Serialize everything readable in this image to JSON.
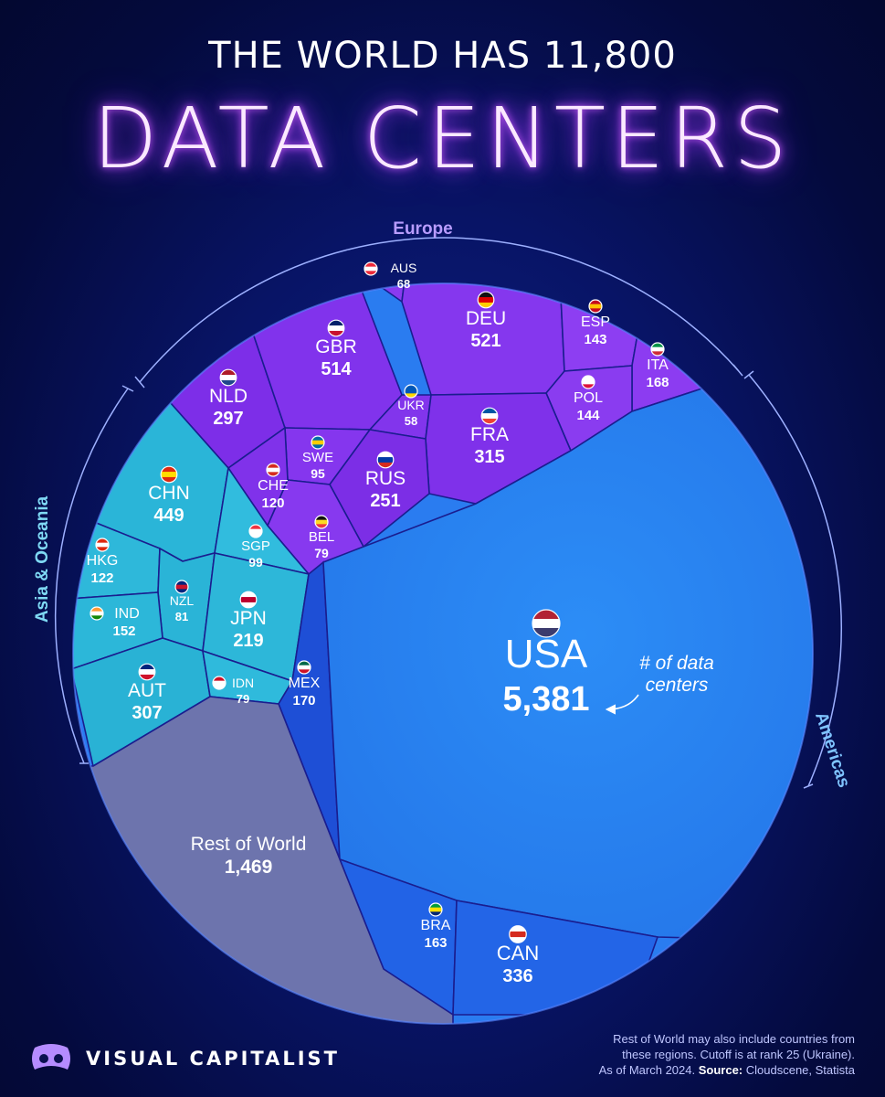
{
  "header": {
    "top_line": "THE WORLD HAS 11,800",
    "main_title": "DATA CENTERS"
  },
  "chart_data": {
    "type": "voronoi-treemap",
    "title": "THE WORLD HAS 11,800 DATA CENTERS",
    "unit_annotation": "# of data centers",
    "groups": [
      {
        "name": "Europe",
        "color": "#8a3cf0"
      },
      {
        "name": "Asia & Oceania",
        "color": "#27b3d6"
      },
      {
        "name": "Americas",
        "color": "#2f86f2"
      }
    ],
    "items": [
      {
        "code": "USA",
        "value": "5,381",
        "group": "Americas"
      },
      {
        "code": "Rest of World",
        "value": "1,469",
        "group": "Other"
      },
      {
        "code": "DEU",
        "value": "521",
        "group": "Europe"
      },
      {
        "code": "GBR",
        "value": "514",
        "group": "Europe"
      },
      {
        "code": "CHN",
        "value": "449",
        "group": "Asia & Oceania"
      },
      {
        "code": "CAN",
        "value": "336",
        "group": "Americas"
      },
      {
        "code": "FRA",
        "value": "315",
        "group": "Europe"
      },
      {
        "code": "AUT",
        "value": "307",
        "group": "Asia & Oceania"
      },
      {
        "code": "NLD",
        "value": "297",
        "group": "Europe"
      },
      {
        "code": "RUS",
        "value": "251",
        "group": "Europe"
      },
      {
        "code": "JPN",
        "value": "219",
        "group": "Asia & Oceania"
      },
      {
        "code": "MEX",
        "value": "170",
        "group": "Americas"
      },
      {
        "code": "ITA",
        "value": "168",
        "group": "Europe"
      },
      {
        "code": "BRA",
        "value": "163",
        "group": "Americas"
      },
      {
        "code": "IND",
        "value": "152",
        "group": "Asia & Oceania"
      },
      {
        "code": "POL",
        "value": "144",
        "group": "Europe"
      },
      {
        "code": "ESP",
        "value": "143",
        "group": "Europe"
      },
      {
        "code": "HKG",
        "value": "122",
        "group": "Asia & Oceania"
      },
      {
        "code": "CHE",
        "value": "120",
        "group": "Europe"
      },
      {
        "code": "SGP",
        "value": "99",
        "group": "Asia & Oceania"
      },
      {
        "code": "SWE",
        "value": "95",
        "group": "Europe"
      },
      {
        "code": "NZL",
        "value": "81",
        "group": "Asia & Oceania"
      },
      {
        "code": "BEL",
        "value": "79",
        "group": "Europe"
      },
      {
        "code": "IDN",
        "value": "79",
        "group": "Asia & Oceania"
      },
      {
        "code": "AUS",
        "value": "68",
        "group": "Europe"
      },
      {
        "code": "UKR",
        "value": "58",
        "group": "Europe"
      }
    ]
  },
  "brand": {
    "name": "VISUAL CAPITALIST"
  },
  "footnote": {
    "line1": "Rest of World may also include countries from",
    "line2": "these regions. Cutoff is at rank 25 (Ukraine).",
    "line3_prefix": "As of March 2024. ",
    "source_label": "Source:",
    "source_text": " Cloudscene, Statista"
  }
}
